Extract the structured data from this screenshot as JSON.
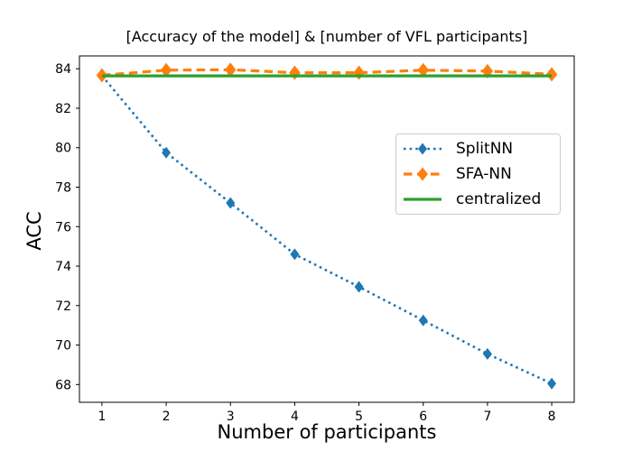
{
  "chart_data": {
    "type": "line",
    "title": "[Accuracy of the model] & [number of VFL participants]",
    "xlabel": "Number of participants",
    "ylabel": "ACC",
    "x": [
      1,
      2,
      3,
      4,
      5,
      6,
      7,
      8
    ],
    "xtick_labels": [
      "1",
      "2",
      "3",
      "4",
      "5",
      "6",
      "7",
      "8"
    ],
    "ytick_values": [
      68,
      70,
      72,
      74,
      76,
      78,
      80,
      82,
      84
    ],
    "ytick_labels": [
      "68",
      "70",
      "72",
      "74",
      "76",
      "78",
      "80",
      "82",
      "84"
    ],
    "xlim": [
      0.65,
      8.35
    ],
    "ylim": [
      67.1,
      84.65
    ],
    "grid": false,
    "legend_position": "center right",
    "axis_color": "#000000",
    "series": [
      {
        "name": "SplitNN",
        "color": "#1f77b4",
        "linestyle": "dotted",
        "marker": "thin-diamond",
        "values": [
          83.65,
          79.75,
          77.2,
          74.6,
          72.95,
          71.25,
          69.55,
          68.05
        ]
      },
      {
        "name": "SFA-NN",
        "color": "#ff7f0e",
        "linestyle": "dashed",
        "marker": "thin-diamond",
        "values": [
          83.67,
          83.93,
          83.95,
          83.8,
          83.8,
          83.93,
          83.88,
          83.72
        ]
      },
      {
        "name": "centralized",
        "color": "#2ca02c",
        "linestyle": "solid",
        "marker": "none",
        "values": [
          83.64,
          83.64,
          83.64,
          83.64,
          83.64,
          83.64,
          83.64,
          83.64
        ]
      }
    ]
  }
}
